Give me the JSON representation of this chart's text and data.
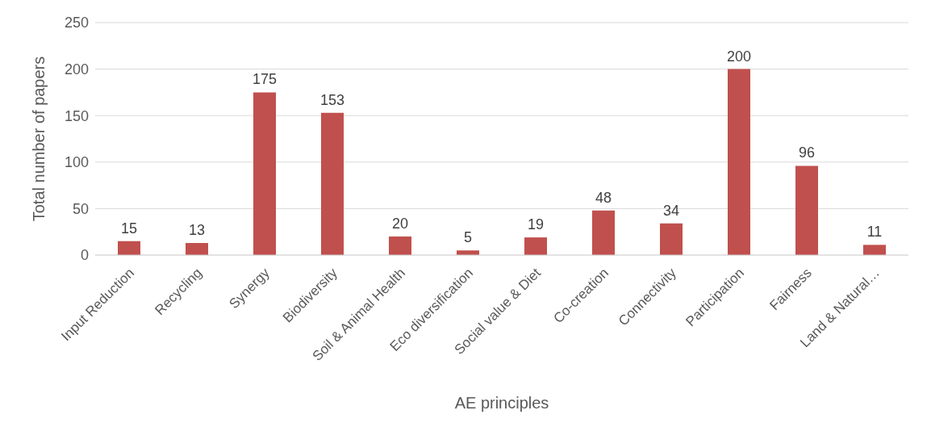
{
  "chart_data": {
    "type": "bar",
    "xlabel": "AE principles",
    "ylabel": "Total number of papers",
    "categories": [
      "Input Reduction",
      "Recycling",
      "Synergy",
      "Biodiversity",
      "Soil & Animal Health",
      "Eco diversification",
      "Social value & Diet",
      "Co-creation",
      "Connectivity",
      "Participation",
      "Fairness",
      "Land & Natural…"
    ],
    "values": [
      15,
      13,
      175,
      153,
      20,
      5,
      19,
      48,
      34,
      200,
      96,
      11
    ],
    "color": "#c0504d",
    "ylim": [
      0,
      250
    ],
    "yticks": [
      0,
      50,
      100,
      150,
      200,
      250
    ],
    "grid": "y",
    "data_labels": true
  }
}
